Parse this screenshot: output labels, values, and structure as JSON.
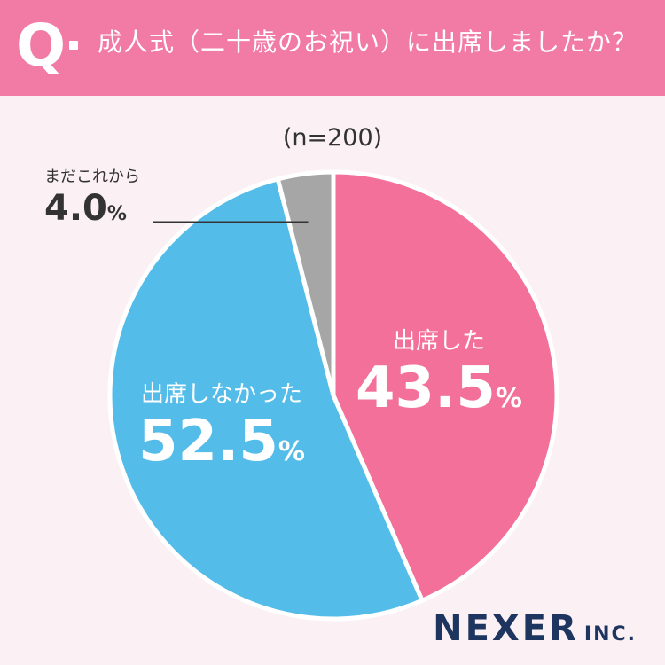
{
  "header": {
    "q_mark": "Q",
    "question": "成人式（二十歳のお祝い）に出席しましたか？"
  },
  "sample_size": "(n=200)",
  "colors": {
    "header_bg": "#f27ba6",
    "attended": "#f27099",
    "not_attended": "#54bce8",
    "not_yet": "#a6a6a6"
  },
  "chart_data": {
    "type": "pie",
    "title": "成人式（二十歳のお祝い）に出席しましたか？",
    "subtitle": "(n=200)",
    "unit": "%",
    "start": "12 o'clock, clockwise",
    "slices": [
      {
        "name": "出席した",
        "value": 43.5,
        "color": "#f27099",
        "label_position": "inside"
      },
      {
        "name": "出席しなかった",
        "value": 52.5,
        "color": "#54bce8",
        "label_position": "inside"
      },
      {
        "name": "まだこれから",
        "value": 4.0,
        "color": "#a6a6a6",
        "label_position": "outside-left"
      }
    ]
  },
  "logo": {
    "main": "NEXER",
    "suffix": "INC."
  }
}
